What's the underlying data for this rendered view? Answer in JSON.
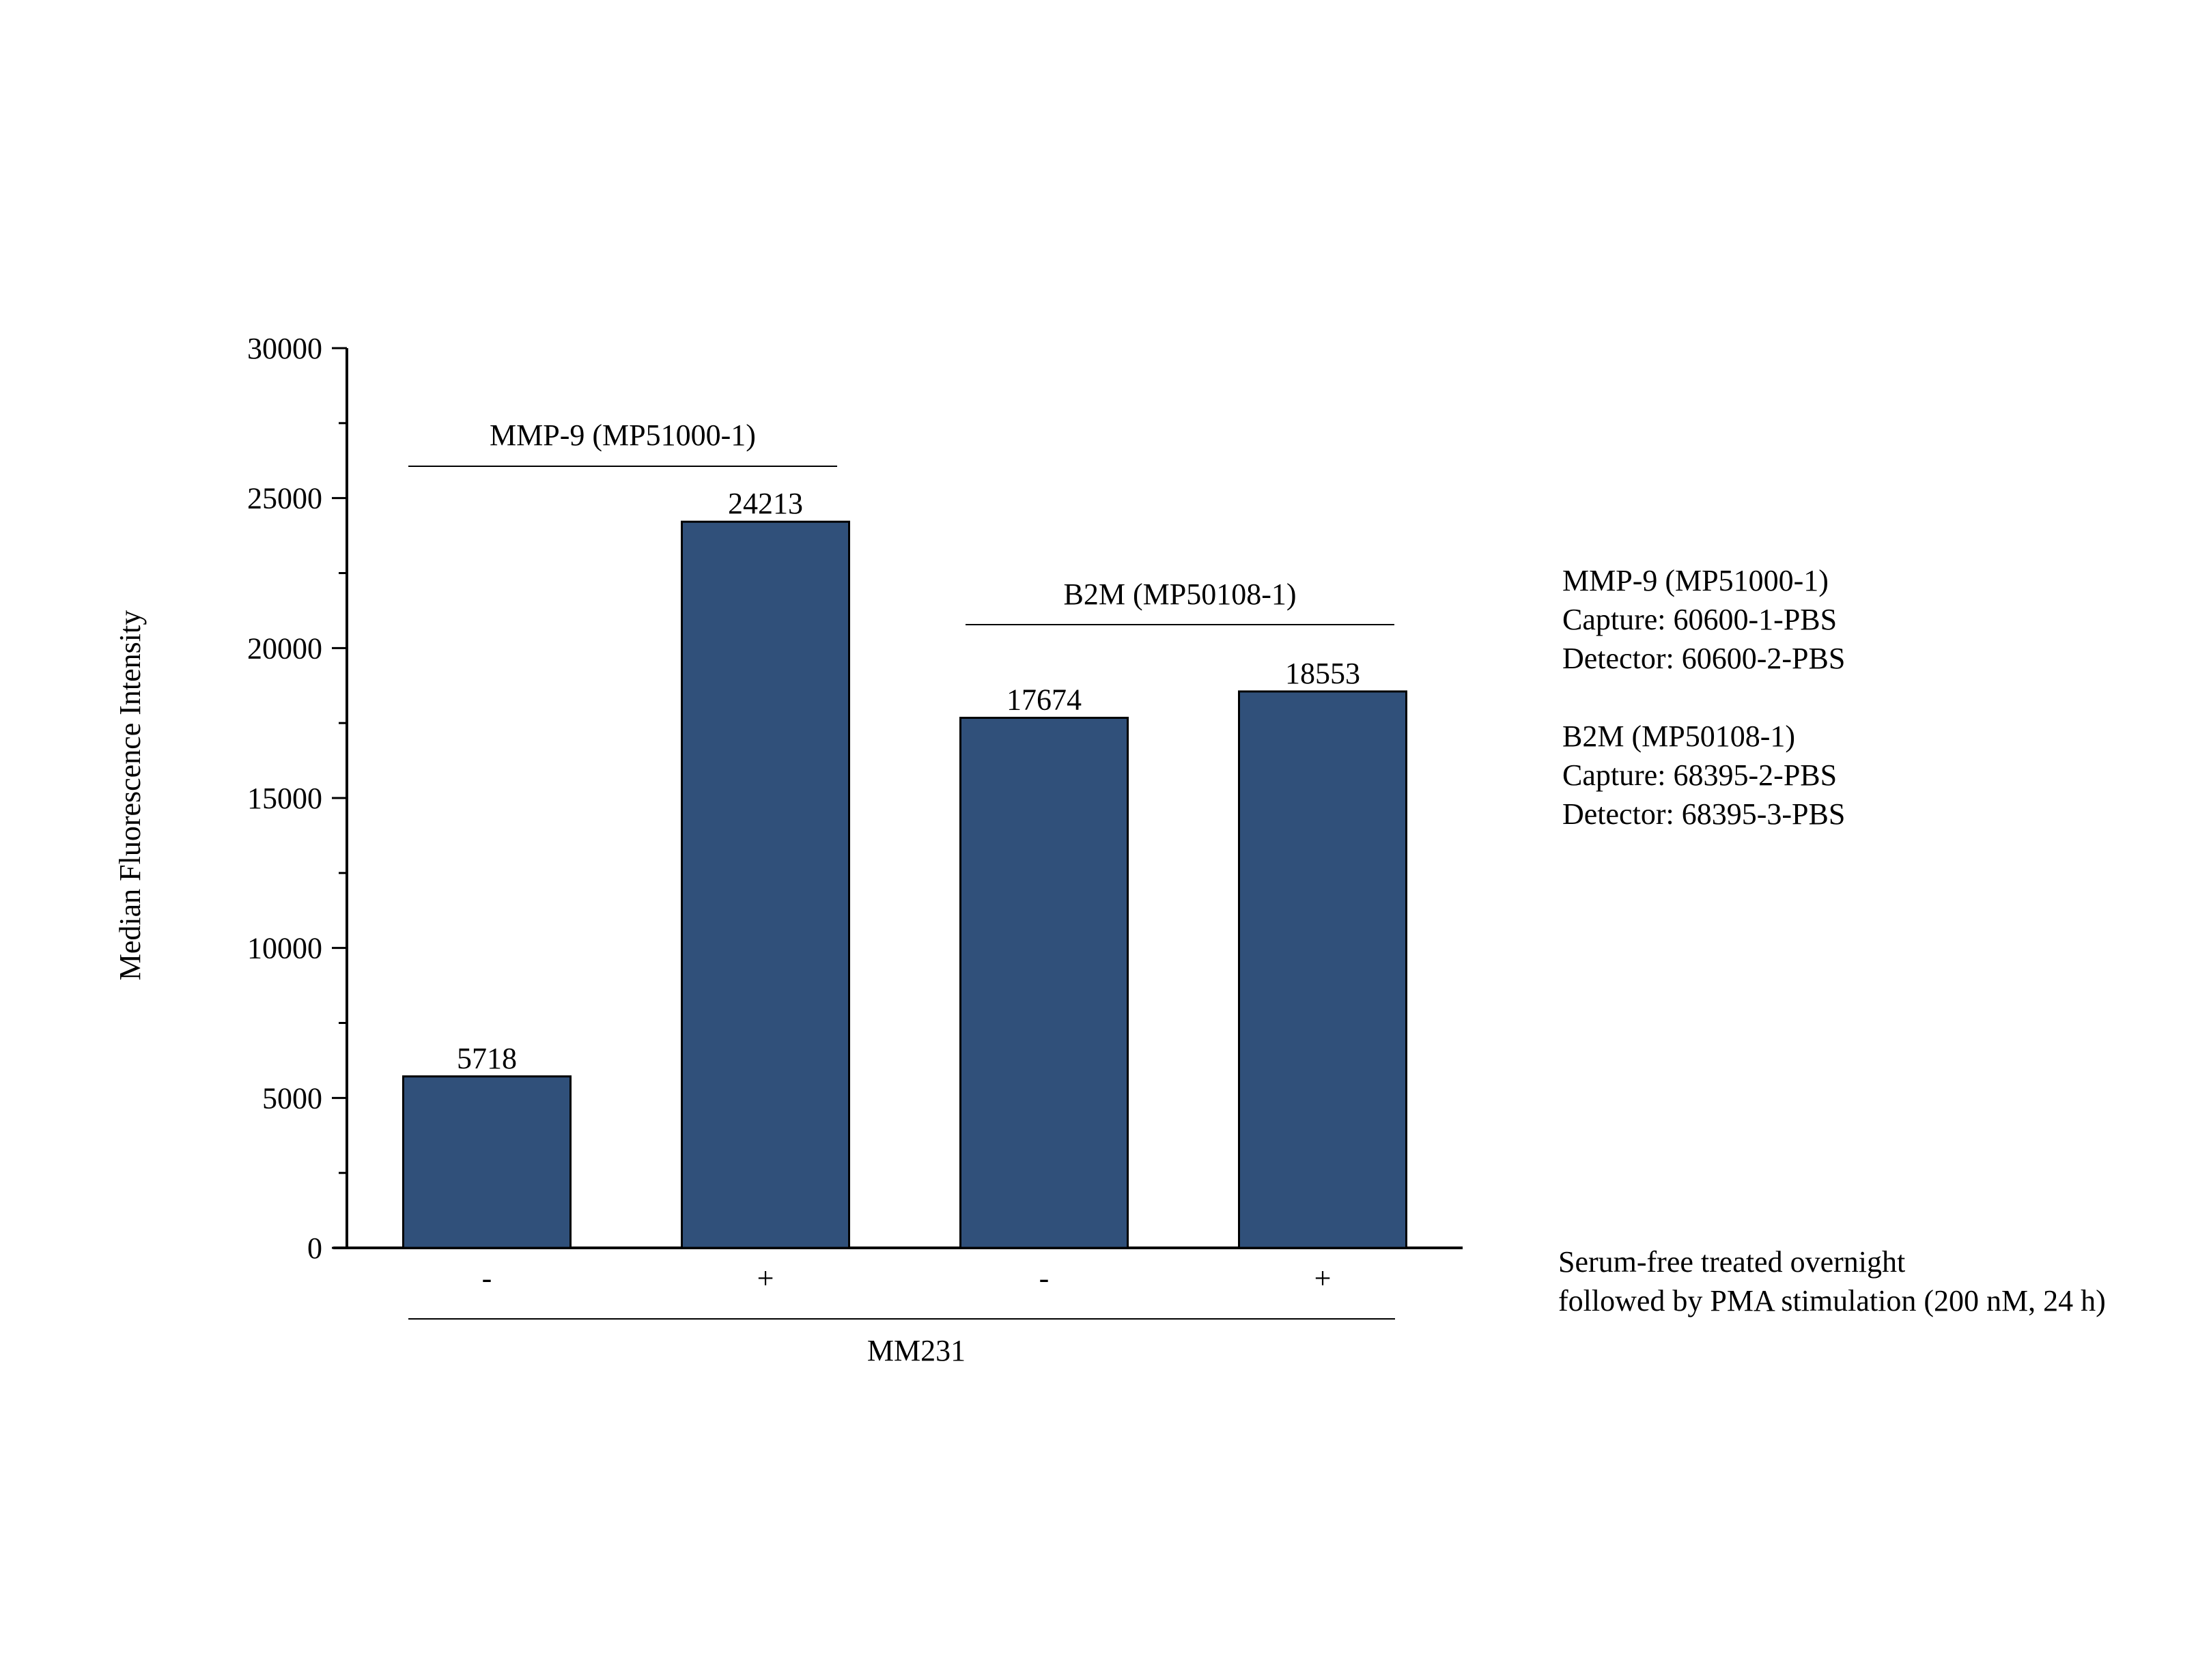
{
  "chart_data": {
    "type": "bar",
    "categories": [
      "-",
      "+",
      "-",
      "+"
    ],
    "values": [
      5718,
      24213,
      17674,
      18553
    ],
    "data_labels": [
      "5718",
      "24213",
      "17674",
      "18553"
    ],
    "ylabel": "Median Fluorescence Intensity",
    "xlabel": "MM231",
    "ylim": [
      0,
      30000
    ],
    "yticks": [
      0,
      5000,
      10000,
      15000,
      20000,
      25000,
      30000
    ],
    "ytick_labels": [
      "0",
      "5000",
      "10000",
      "15000",
      "20000",
      "25000",
      "30000"
    ],
    "grid": false,
    "bar_color": "#30507a",
    "groups": [
      {
        "label": "MMP-9 (MP51000-1)",
        "bars": [
          0,
          1
        ]
      },
      {
        "label": "B2M (MP50108-1)",
        "bars": [
          2,
          3
        ]
      }
    ]
  },
  "legend_notes": {
    "mmp9": [
      "MMP-9 (MP51000-1)",
      "Capture: 60600-1-PBS",
      "Detector: 60600-2-PBS"
    ],
    "b2m": [
      "B2M (MP50108-1)",
      "Capture: 68395-2-PBS",
      "Detector: 68395-3-PBS"
    ]
  },
  "treatment_note": [
    "Serum-free treated overnight",
    "followed by PMA stimulation (200 nM, 24 h)"
  ]
}
